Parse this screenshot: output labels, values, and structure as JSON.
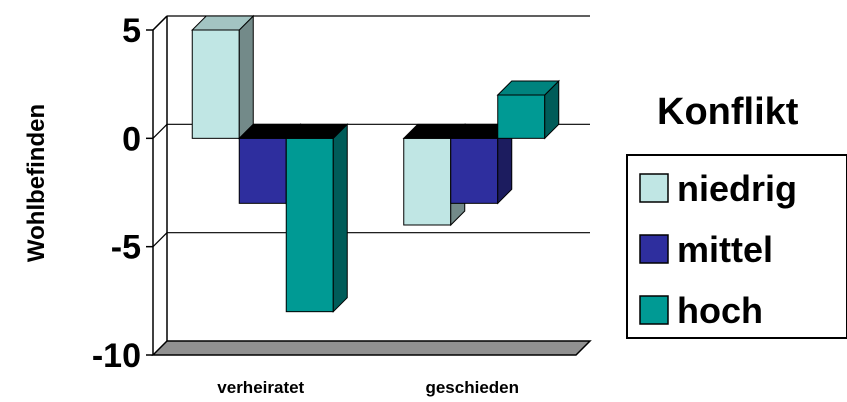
{
  "chart_data": {
    "type": "bar",
    "categories": [
      "verheiratet",
      "geschieden"
    ],
    "series": [
      {
        "name": "niedrig",
        "values": [
          5,
          -4
        ],
        "color": "#c0e6e4"
      },
      {
        "name": "mittel",
        "values": [
          -3,
          -3
        ],
        "color": "#2e2e9e"
      },
      {
        "name": "hoch",
        "values": [
          -8,
          2
        ],
        "color": "#009a94"
      }
    ],
    "ylabel": "Wohlbefinden",
    "ylim": [
      -10,
      5
    ],
    "yticks": [
      "5",
      "0",
      "-5",
      "-10"
    ],
    "ytick_values": [
      5,
      0,
      -5,
      -10
    ],
    "legend_title": "Konflikt",
    "legend_position": "right",
    "grid": true,
    "style": "3d"
  }
}
